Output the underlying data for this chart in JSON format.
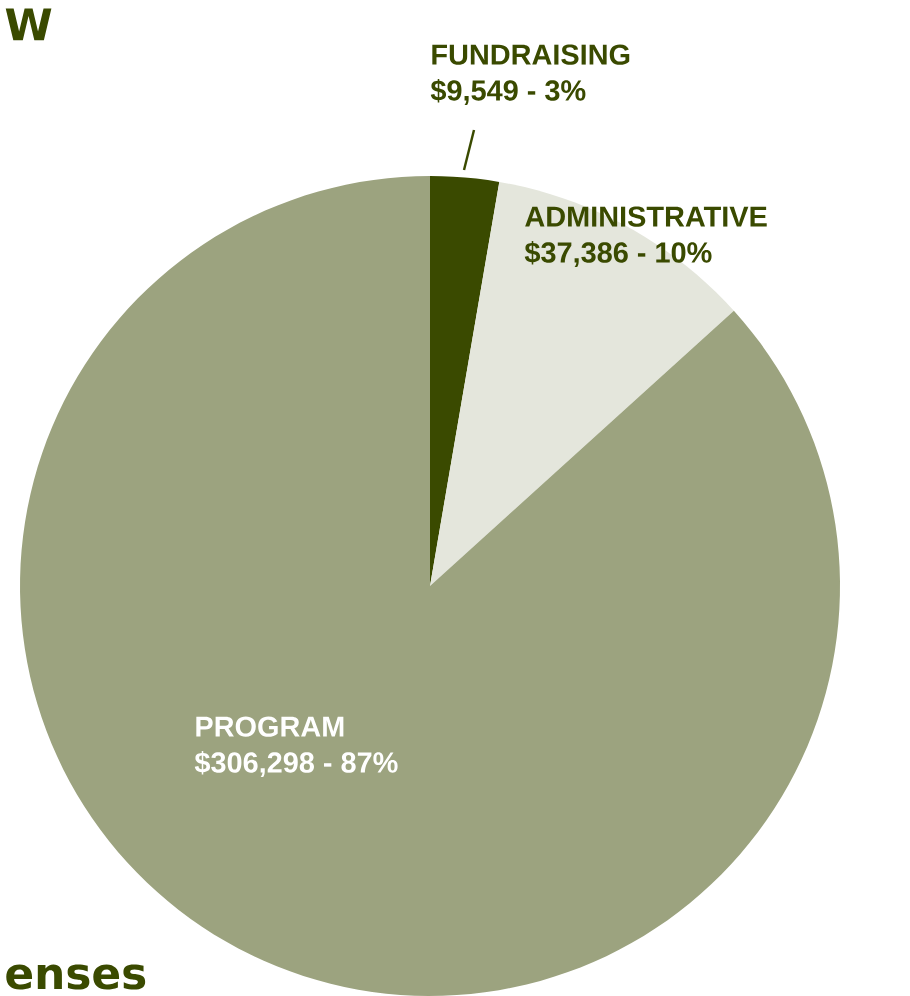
{
  "chart_data": {
    "type": "pie",
    "categories": [
      "FUNDRAISING",
      "ADMINISTRATIVE",
      "PROGRAM"
    ],
    "values": [
      9549,
      37386,
      306298
    ],
    "value_labels": [
      "$9,549 - 3%",
      "$37,386 - 10%",
      "$306,298 - 87%"
    ],
    "colors": [
      "#3a4a00",
      "#e4e6dc",
      "#9ca37f"
    ],
    "annotations": [
      "W",
      "enses"
    ]
  }
}
